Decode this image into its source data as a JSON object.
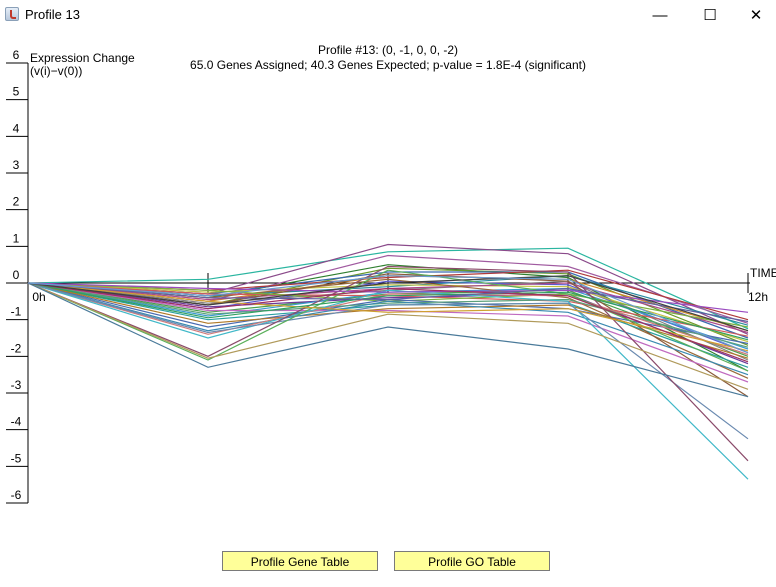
{
  "window": {
    "title": "Profile 13",
    "minimize_glyph": "—",
    "maximize_glyph": "☐",
    "close_glyph": "✕"
  },
  "buttons": {
    "gene_table": "Profile Gene Table",
    "go_table": "Profile GO Table"
  },
  "chart_data": {
    "type": "line",
    "title": "Profile #13: (0, -1, 0, 0, -2)",
    "subtitle": "65.0 Genes Assigned; 40.3 Genes Expected; p-value = 1.8E-4 (significant)",
    "ylabel": "Expression Change\n(v(i)−v(0))",
    "xlabel": "TIME",
    "ylim": [
      -6,
      6
    ],
    "yticks": [
      6,
      5,
      4,
      3,
      2,
      1,
      0,
      -1,
      -2,
      -3,
      -4,
      -5,
      -6
    ],
    "x": [
      0,
      1,
      2,
      3,
      4
    ],
    "xtick_labels": [
      "0h",
      "",
      "",
      "",
      "12h"
    ],
    "grid": false,
    "legend": "none",
    "series": [
      {
        "values": [
          0,
          0.1,
          0.85,
          0.95,
          -1.25
        ],
        "color": "#2ab5a0"
      },
      {
        "values": [
          0,
          -0.3,
          1.05,
          0.8,
          -1.4
        ],
        "color": "#8a4a8a"
      },
      {
        "values": [
          0,
          -0.5,
          0.75,
          0.45,
          -1.1
        ],
        "color": "#a05aa0"
      },
      {
        "values": [
          0,
          -0.4,
          0.5,
          0.15,
          -2.4
        ],
        "color": "#2f7f2f"
      },
      {
        "values": [
          0,
          -0.6,
          0.4,
          0.25,
          -1.7
        ],
        "color": "#6a9a2a"
      },
      {
        "values": [
          0,
          -0.3,
          0.3,
          0.3,
          -1.5
        ],
        "color": "#3a6ab0"
      },
      {
        "values": [
          0,
          -0.2,
          0.15,
          0.35,
          -1.0
        ],
        "color": "#b03a3a"
      },
      {
        "values": [
          0,
          -0.5,
          0.2,
          0.1,
          -1.3
        ],
        "color": "#d08a2a"
      },
      {
        "values": [
          0,
          -0.7,
          0.05,
          -0.05,
          -1.9
        ],
        "color": "#5a5ad0"
      },
      {
        "values": [
          0,
          -0.35,
          -0.1,
          0.2,
          -1.15
        ],
        "color": "#2a8aa0"
      },
      {
        "values": [
          0,
          -0.55,
          -0.2,
          0.05,
          -2.1
        ],
        "color": "#808080"
      },
      {
        "values": [
          0,
          -0.25,
          -0.05,
          -0.1,
          -1.6
        ],
        "color": "#c0c040"
      },
      {
        "values": [
          0,
          -0.8,
          -0.3,
          -0.2,
          -2.0
        ],
        "color": "#4aa04a"
      },
      {
        "values": [
          0,
          -0.45,
          -0.15,
          0.0,
          -1.35
        ],
        "color": "#aa4a8a"
      },
      {
        "values": [
          0,
          -0.65,
          -0.4,
          -0.3,
          -2.2
        ],
        "color": "#6a3a9a"
      },
      {
        "values": [
          0,
          -0.9,
          -0.25,
          -0.15,
          -1.8
        ],
        "color": "#3a9ad0"
      },
      {
        "values": [
          0,
          -0.4,
          0.1,
          -0.4,
          -2.6
        ],
        "color": "#9a6a3a"
      },
      {
        "values": [
          0,
          -0.3,
          -0.35,
          -0.5,
          -1.45
        ],
        "color": "#d05a5a"
      },
      {
        "values": [
          0,
          -1.0,
          -0.6,
          -0.55,
          -2.3
        ],
        "color": "#2aa0a0"
      },
      {
        "values": [
          0,
          -0.6,
          0.25,
          0.05,
          -3.1
        ],
        "color": "#8a5a3a"
      },
      {
        "values": [
          0,
          -0.2,
          -0.5,
          -0.3,
          -1.2
        ],
        "color": "#7ab040"
      },
      {
        "values": [
          0,
          -1.2,
          -0.45,
          -0.7,
          -1.65
        ],
        "color": "#4a6ab0"
      },
      {
        "values": [
          0,
          -0.75,
          -0.75,
          -0.9,
          -2.7
        ],
        "color": "#c06ac0"
      },
      {
        "values": [
          0,
          -1.1,
          -0.7,
          -0.6,
          -2.05
        ],
        "color": "#b07a2a"
      },
      {
        "values": [
          0,
          -0.85,
          -0.55,
          -0.45,
          -1.75
        ],
        "color": "#5aa07a"
      },
      {
        "values": [
          0,
          -1.3,
          -0.5,
          -0.8,
          -2.5
        ],
        "color": "#3a8ab0"
      },
      {
        "values": [
          0,
          -1.4,
          -0.3,
          -0.35,
          -1.95
        ],
        "color": "#d07a7a"
      },
      {
        "values": [
          0,
          -1.5,
          -0.2,
          -0.5,
          -5.35
        ],
        "color": "#40b8c8"
      },
      {
        "values": [
          0,
          -1.35,
          -0.6,
          -0.55,
          -4.25
        ],
        "color": "#6a8ab0"
      },
      {
        "values": [
          0,
          -2.0,
          0.45,
          0.3,
          -4.85
        ],
        "color": "#8a4a6a"
      },
      {
        "values": [
          0,
          -2.1,
          0.35,
          -0.3,
          -2.4
        ],
        "color": "#5ab05a"
      },
      {
        "values": [
          0,
          -2.05,
          -0.85,
          -1.1,
          -2.9
        ],
        "color": "#b09a5a"
      },
      {
        "values": [
          0,
          -2.3,
          -1.2,
          -1.8,
          -3.1
        ],
        "color": "#4a7a9a"
      },
      {
        "values": [
          0,
          -0.5,
          -0.8,
          -0.7,
          -1.85
        ],
        "color": "#d0a030"
      },
      {
        "values": [
          0,
          -0.15,
          -0.25,
          -0.2,
          -0.8
        ],
        "color": "#9a4ac0"
      },
      {
        "values": [
          0,
          -0.95,
          -0.35,
          -0.25,
          -1.55
        ],
        "color": "#30a060"
      },
      {
        "values": [
          0,
          -0.7,
          -0.15,
          -0.35,
          -2.15
        ],
        "color": "#a03060"
      },
      {
        "values": [
          0,
          -0.4,
          -0.45,
          -0.15,
          -1.05
        ],
        "color": "#6060a0"
      },
      {
        "values": [
          0,
          -0.6,
          0.0,
          0.2,
          -1.3
        ],
        "color": "#404040"
      },
      {
        "values": [
          0,
          -0.35,
          0.2,
          0.1,
          -1.9
        ],
        "color": "#6a9ad0"
      }
    ]
  }
}
